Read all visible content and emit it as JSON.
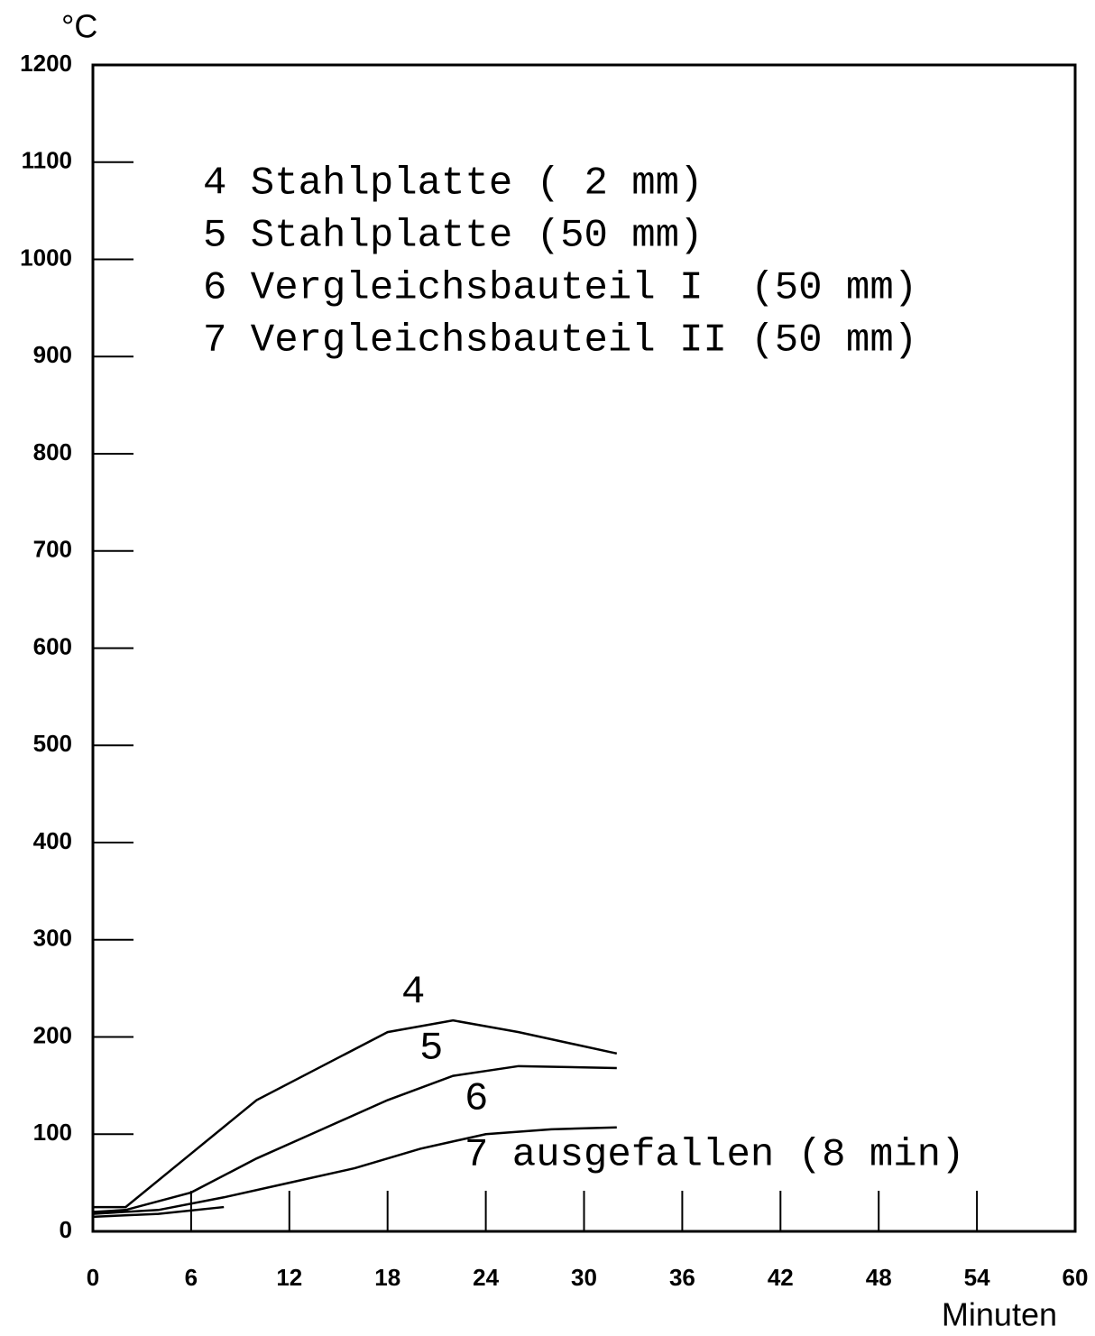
{
  "chart_data": {
    "type": "line",
    "y_label": "°C",
    "x_label": "Minuten",
    "xlim": [
      0,
      60
    ],
    "xticks": [
      0,
      6,
      12,
      18,
      24,
      30,
      36,
      42,
      48,
      54,
      60
    ],
    "ylim": [
      0,
      1200
    ],
    "yticks": [
      0,
      100,
      200,
      300,
      400,
      500,
      600,
      700,
      800,
      900,
      1000,
      1100,
      1200
    ],
    "series": [
      {
        "name": "4 Stahlplatte ( 2 mm)",
        "color": "#000000",
        "x": [
          0,
          2,
          6,
          10,
          14,
          18,
          22,
          26,
          32
        ],
        "values": [
          25,
          25,
          80,
          135,
          170,
          205,
          217,
          205,
          183
        ]
      },
      {
        "name": "5 Stahlplatte (50 mm)",
        "color": "#000000",
        "x": [
          0,
          2,
          6,
          10,
          14,
          18,
          22,
          26,
          32
        ],
        "values": [
          20,
          22,
          40,
          75,
          105,
          135,
          160,
          170,
          168
        ]
      },
      {
        "name": "6 Vergleichsbauteil I  (50 mm)",
        "color": "#000000",
        "x": [
          0,
          4,
          8,
          12,
          16,
          20,
          24,
          28,
          32
        ],
        "values": [
          18,
          22,
          35,
          50,
          65,
          85,
          100,
          105,
          107
        ]
      },
      {
        "name": "7 Vergleichsbauteil II (50 mm)",
        "color": "#000000",
        "x": [
          0,
          4,
          8
        ],
        "values": [
          15,
          18,
          25
        ]
      }
    ],
    "annotations": [
      "4",
      "5",
      "6",
      "7 ausgefallen (8 min)"
    ]
  }
}
